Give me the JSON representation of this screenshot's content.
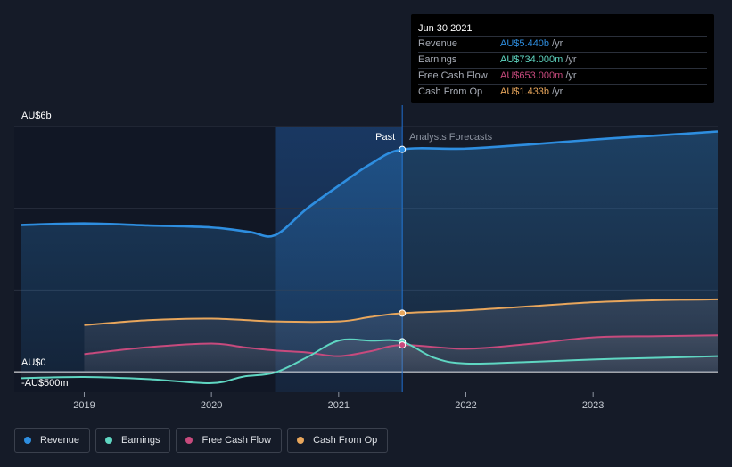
{
  "tooltip": {
    "date": "Jun 30 2021",
    "rows": [
      {
        "label": "Revenue",
        "value": "AU$5.440b",
        "unit": "/yr",
        "color": "#2e8ee0"
      },
      {
        "label": "Earnings",
        "value": "AU$734.000m",
        "unit": "/yr",
        "color": "#5fd6c2"
      },
      {
        "label": "Free Cash Flow",
        "value": "AU$653.000m",
        "unit": "/yr",
        "color": "#c74a7d"
      },
      {
        "label": "Cash From Op",
        "value": "AU$1.433b",
        "unit": "/yr",
        "color": "#e8a65c"
      }
    ]
  },
  "divider_labels": {
    "past": "Past",
    "forecast": "Analysts Forecasts"
  },
  "colors": {
    "revenue": "#2e8ee0",
    "earnings": "#5fd6c2",
    "free_cash_flow": "#c74a7d",
    "cash_from_op": "#e8a65c",
    "background": "#151b28",
    "past_highlight": "#0f2648"
  },
  "legend": [
    {
      "label": "Revenue",
      "color": "#2e8ee0"
    },
    {
      "label": "Earnings",
      "color": "#5fd6c2"
    },
    {
      "label": "Free Cash Flow",
      "color": "#c74a7d"
    },
    {
      "label": "Cash From Op",
      "color": "#e8a65c"
    }
  ],
  "chart_data": {
    "type": "line",
    "title": "",
    "xlabel": "",
    "ylabel": "",
    "y_tick_labels": [
      "AU$6b",
      "AU$0",
      "-AU$500m"
    ],
    "x_tick_labels": [
      "2019",
      "2020",
      "2021",
      "2022",
      "2023"
    ],
    "ylim": [
      -500,
      6000
    ],
    "xlim": [
      2018.45,
      2023.98
    ],
    "past_end": 2021.5,
    "highlight_start": 2020.5,
    "series": [
      {
        "name": "Revenue",
        "x": [
          2018.5,
          2019.0,
          2019.5,
          2020.0,
          2020.3,
          2020.5,
          2020.75,
          2021.0,
          2021.25,
          2021.5,
          2022.0,
          2022.5,
          2023.0,
          2023.5,
          2023.98
        ],
        "y": [
          3590,
          3630,
          3580,
          3530,
          3420,
          3340,
          3990,
          4550,
          5080,
          5440,
          5460,
          5560,
          5680,
          5780,
          5880
        ]
      },
      {
        "name": "Earnings",
        "x": [
          2018.5,
          2019.0,
          2019.5,
          2020.0,
          2020.25,
          2020.5,
          2020.75,
          2021.0,
          2021.25,
          2021.5,
          2021.75,
          2022.0,
          2022.5,
          2023.0,
          2023.5,
          2023.98
        ],
        "y": [
          -160,
          -130,
          -180,
          -280,
          -120,
          -20,
          350,
          760,
          760,
          734,
          340,
          200,
          240,
          300,
          340,
          380
        ]
      },
      {
        "name": "Free Cash Flow",
        "x": [
          2019.0,
          2019.5,
          2020.0,
          2020.25,
          2020.5,
          2020.75,
          2021.0,
          2021.25,
          2021.5,
          2022.0,
          2022.5,
          2023.0,
          2023.5,
          2023.98
        ],
        "y": [
          430,
          600,
          690,
          600,
          520,
          470,
          380,
          500,
          653,
          560,
          680,
          840,
          870,
          890
        ]
      },
      {
        "name": "Cash From Op",
        "x": [
          2019.0,
          2019.5,
          2020.0,
          2020.5,
          2021.0,
          2021.25,
          2021.5,
          2022.0,
          2022.5,
          2023.0,
          2023.5,
          2023.98
        ],
        "y": [
          1140,
          1260,
          1300,
          1230,
          1230,
          1340,
          1433,
          1500,
          1600,
          1700,
          1750,
          1770
        ]
      }
    ]
  }
}
